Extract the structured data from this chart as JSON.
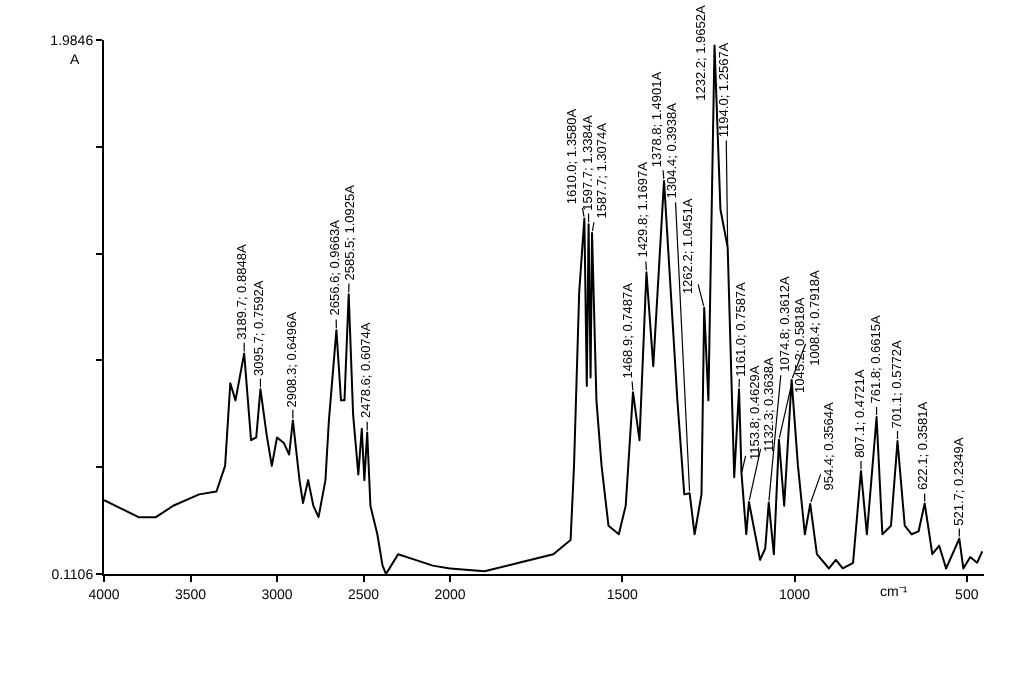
{
  "chart_data": [
    {
      "type": "line",
      "ylabel": "A",
      "xlim": [
        4000,
        2000
      ],
      "xticks": [
        4000,
        3500,
        3000,
        2500
      ],
      "ylim": [
        0.1106,
        1.9846
      ],
      "yticks": [
        {
          "value": 0.1106,
          "label": "0.1106"
        },
        {
          "value": 0.4854,
          "label": null
        },
        {
          "value": 0.8602,
          "label": null
        },
        {
          "value": 1.235,
          "label": null
        },
        {
          "value": 1.6098,
          "label": null
        },
        {
          "value": 1.9846,
          "label": "1.9846"
        }
      ],
      "grid": false,
      "marker": "none",
      "line_style": "solid",
      "series": [
        {
          "color": "#000000",
          "x": [
            4000,
            3800,
            3700,
            3600,
            3450,
            3350,
            3300,
            3270,
            3240,
            3189.7,
            3150,
            3120,
            3095.7,
            3060,
            3030,
            3000,
            2960,
            2930,
            2908.3,
            2870,
            2850,
            2820,
            2790,
            2760,
            2720,
            2700,
            2656.6,
            2630,
            2610,
            2585.5,
            2560,
            2530,
            2510,
            2495,
            2478.6,
            2460,
            2420,
            2390,
            2370,
            2340,
            2300,
            2200,
            2100,
            2000
          ],
          "values": [
            0.37,
            0.31,
            0.31,
            0.35,
            0.39,
            0.4,
            0.49,
            0.78,
            0.72,
            0.8848,
            0.58,
            0.59,
            0.7592,
            0.6,
            0.49,
            0.59,
            0.57,
            0.53,
            0.6496,
            0.44,
            0.36,
            0.44,
            0.35,
            0.31,
            0.44,
            0.65,
            0.9663,
            0.72,
            0.72,
            1.0925,
            0.67,
            0.46,
            0.62,
            0.44,
            0.6074,
            0.35,
            0.25,
            0.14,
            0.1106,
            0.14,
            0.18,
            0.16,
            0.14,
            0.13
          ]
        }
      ],
      "annotations": [
        {
          "text": "3189.7; 0.8848A",
          "x": 3189.7,
          "y": 0.8848
        },
        {
          "text": "3095.7; 0.7592A",
          "x": 3095.7,
          "y": 0.7592
        },
        {
          "text": "2908.3; 0.6496A",
          "x": 2908.3,
          "y": 0.6496
        },
        {
          "text": "2656.6; 0.9663A",
          "x": 2656.6,
          "y": 0.9663
        },
        {
          "text": "2585.5; 1.0925A",
          "x": 2585.5,
          "y": 1.0925
        },
        {
          "text": "2478.6; 0.6074A",
          "x": 2478.6,
          "y": 0.6074
        }
      ]
    },
    {
      "type": "line",
      "xlabel": "cm⁻¹",
      "xlim": [
        2000,
        450
      ],
      "xticks": [
        2000,
        1500,
        1000,
        500
      ],
      "ylim": [
        0.1106,
        1.9846
      ],
      "tick_labels": "x",
      "grid": false,
      "marker": "none",
      "line_style": "solid",
      "series": [
        {
          "color": "#000000",
          "x": [
            2000,
            1900,
            1800,
            1700,
            1650,
            1640,
            1625,
            1610,
            1603,
            1597.7,
            1592,
            1587.7,
            1575,
            1560,
            1540,
            1510,
            1490,
            1468.9,
            1450,
            1429.8,
            1410,
            1378.8,
            1340,
            1320,
            1304.4,
            1290,
            1270,
            1262.2,
            1250,
            1232.2,
            1215,
            1194,
            1175,
            1161,
            1153.8,
            1140,
            1132.3,
            1100,
            1085,
            1074.8,
            1060,
            1045.2,
            1030,
            1008.4,
            990,
            970,
            954.4,
            935,
            900,
            880,
            860,
            830,
            807.1,
            790,
            761.8,
            745,
            720,
            701.1,
            680,
            660,
            640,
            622.1,
            600,
            580,
            560,
            521.7,
            510,
            490,
            470,
            455
          ],
          "values": [
            0.13,
            0.12,
            0.15,
            0.18,
            0.23,
            0.49,
            1.1,
            1.358,
            0.77,
            1.3384,
            0.8,
            1.3074,
            0.72,
            0.49,
            0.28,
            0.25,
            0.35,
            0.7487,
            0.58,
            1.1697,
            0.84,
            1.4901,
            0.72,
            0.39,
            0.3938,
            0.25,
            0.39,
            1.0451,
            0.72,
            1.9652,
            1.39,
            1.2567,
            0.45,
            0.7587,
            0.4629,
            0.25,
            0.3638,
            0.16,
            0.2,
            0.3612,
            0.18,
            0.5818,
            0.35,
            0.7918,
            0.49,
            0.25,
            0.3564,
            0.18,
            0.13,
            0.16,
            0.13,
            0.15,
            0.4721,
            0.25,
            0.6615,
            0.25,
            0.28,
            0.5772,
            0.28,
            0.25,
            0.26,
            0.3581,
            0.18,
            0.21,
            0.13,
            0.2349,
            0.13,
            0.17,
            0.15,
            0.19
          ]
        }
      ],
      "annotations": [
        {
          "text": "1610.0; 1.3580A",
          "x": 1610,
          "y": 1.358
        },
        {
          "text": "1597.7; 1.3384A",
          "x": 1597.7,
          "y": 1.3384
        },
        {
          "text": "1587.7; 1.3074A",
          "x": 1587.7,
          "y": 1.3074
        },
        {
          "text": "1468.9; 0.7487A",
          "x": 1468.9,
          "y": 0.7487
        },
        {
          "text": "1429.8; 1.1697A",
          "x": 1429.8,
          "y": 1.1697
        },
        {
          "text": "1378.8; 1.4901A",
          "x": 1378.8,
          "y": 1.4901
        },
        {
          "text": "1304.4; 0.3938A",
          "x": 1304.4,
          "y": 0.3938
        },
        {
          "text": "1262.2; 1.0451A",
          "x": 1262.2,
          "y": 1.0451
        },
        {
          "text": "1232.2; 1.9652A",
          "x": 1232.2,
          "y": 1.9652
        },
        {
          "text": "1194.0; 1.2567A",
          "x": 1194,
          "y": 1.2567
        },
        {
          "text": "1161.0; 0.7587A",
          "x": 1161,
          "y": 0.7587
        },
        {
          "text": "1153.8; 0.4629A",
          "x": 1153.8,
          "y": 0.4629
        },
        {
          "text": "1132.3; 0.3638A",
          "x": 1132.3,
          "y": 0.3638
        },
        {
          "text": "1074.8; 0.3612A",
          "x": 1074.8,
          "y": 0.3612
        },
        {
          "text": "1045.2; 0.5818A",
          "x": 1045.2,
          "y": 0.5818
        },
        {
          "text": "1008.4; 0.7918A",
          "x": 1008.4,
          "y": 0.7918
        },
        {
          "text": "954.4; 0.3564A",
          "x": 954.4,
          "y": 0.3564
        },
        {
          "text": "807.1; 0.4721A",
          "x": 807.1,
          "y": 0.4721
        },
        {
          "text": "761.8; 0.6615A",
          "x": 761.8,
          "y": 0.6615
        },
        {
          "text": "701.1; 0.5772A",
          "x": 701.1,
          "y": 0.5772
        },
        {
          "text": "622.1; 0.3581A",
          "x": 622.1,
          "y": 0.3581
        },
        {
          "text": "521.7; 0.2349A",
          "x": 521.7,
          "y": 0.2349
        }
      ]
    }
  ]
}
